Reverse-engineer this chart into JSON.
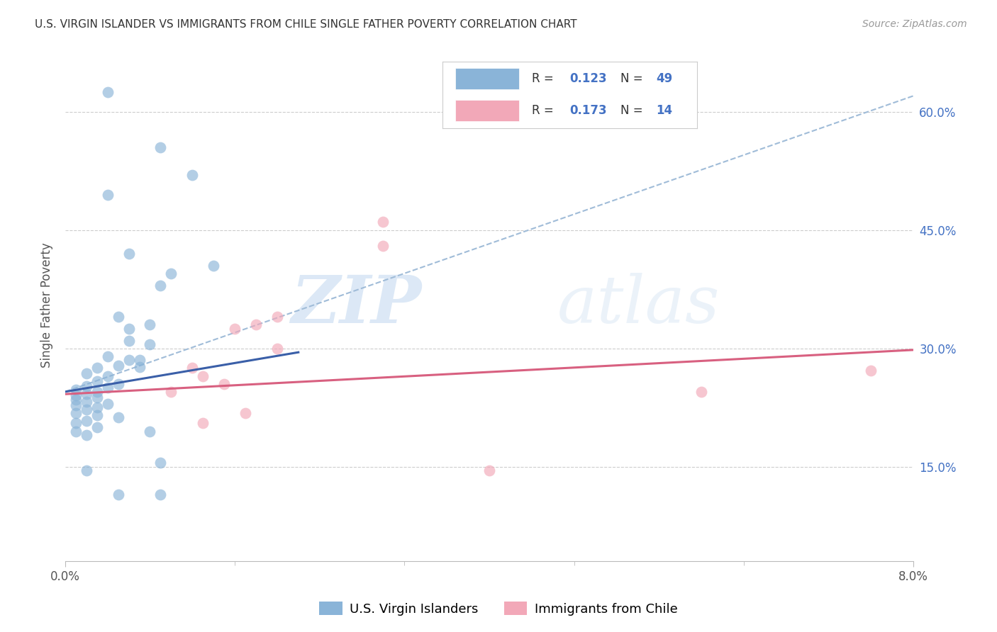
{
  "title": "U.S. VIRGIN ISLANDER VS IMMIGRANTS FROM CHILE SINGLE FATHER POVERTY CORRELATION CHART",
  "source": "Source: ZipAtlas.com",
  "ylabel": "Single Father Poverty",
  "ytick_labels": [
    "15.0%",
    "30.0%",
    "45.0%",
    "60.0%"
  ],
  "ytick_values": [
    0.15,
    0.3,
    0.45,
    0.6
  ],
  "xlim": [
    0.0,
    0.08
  ],
  "ylim": [
    0.03,
    0.68
  ],
  "legend_label1": "U.S. Virgin Islanders",
  "legend_label2": "Immigrants from Chile",
  "watermark_zip": "ZIP",
  "watermark_atlas": "atlas",
  "blue_color": "#8ab4d8",
  "pink_color": "#f2a8b8",
  "blue_line_color": "#3a5fa8",
  "pink_line_color": "#d86080",
  "dashed_line_color": "#a0bcd8",
  "blue_line": [
    [
      0.0,
      0.245
    ],
    [
      0.022,
      0.295
    ]
  ],
  "blue_dash_line": [
    [
      0.0,
      0.245
    ],
    [
      0.08,
      0.62
    ]
  ],
  "pink_line": [
    [
      0.0,
      0.242
    ],
    [
      0.08,
      0.298
    ]
  ],
  "blue_points": [
    [
      0.004,
      0.625
    ],
    [
      0.004,
      0.495
    ],
    [
      0.009,
      0.555
    ],
    [
      0.009,
      0.38
    ],
    [
      0.006,
      0.42
    ],
    [
      0.012,
      0.52
    ],
    [
      0.005,
      0.34
    ],
    [
      0.01,
      0.395
    ],
    [
      0.014,
      0.405
    ],
    [
      0.006,
      0.325
    ],
    [
      0.008,
      0.33
    ],
    [
      0.006,
      0.31
    ],
    [
      0.008,
      0.305
    ],
    [
      0.004,
      0.29
    ],
    [
      0.006,
      0.285
    ],
    [
      0.007,
      0.285
    ],
    [
      0.003,
      0.275
    ],
    [
      0.005,
      0.278
    ],
    [
      0.007,
      0.276
    ],
    [
      0.002,
      0.268
    ],
    [
      0.004,
      0.265
    ],
    [
      0.003,
      0.258
    ],
    [
      0.005,
      0.255
    ],
    [
      0.002,
      0.252
    ],
    [
      0.004,
      0.25
    ],
    [
      0.001,
      0.248
    ],
    [
      0.003,
      0.245
    ],
    [
      0.002,
      0.242
    ],
    [
      0.001,
      0.24
    ],
    [
      0.003,
      0.238
    ],
    [
      0.001,
      0.235
    ],
    [
      0.002,
      0.232
    ],
    [
      0.004,
      0.23
    ],
    [
      0.001,
      0.228
    ],
    [
      0.003,
      0.225
    ],
    [
      0.002,
      0.222
    ],
    [
      0.001,
      0.218
    ],
    [
      0.003,
      0.215
    ],
    [
      0.005,
      0.213
    ],
    [
      0.002,
      0.208
    ],
    [
      0.001,
      0.205
    ],
    [
      0.003,
      0.2
    ],
    [
      0.001,
      0.195
    ],
    [
      0.002,
      0.19
    ],
    [
      0.008,
      0.195
    ],
    [
      0.002,
      0.145
    ],
    [
      0.009,
      0.155
    ],
    [
      0.005,
      0.115
    ],
    [
      0.009,
      0.115
    ]
  ],
  "pink_points": [
    [
      0.03,
      0.46
    ],
    [
      0.03,
      0.43
    ],
    [
      0.02,
      0.34
    ],
    [
      0.018,
      0.33
    ],
    [
      0.016,
      0.325
    ],
    [
      0.02,
      0.3
    ],
    [
      0.012,
      0.275
    ],
    [
      0.013,
      0.265
    ],
    [
      0.015,
      0.255
    ],
    [
      0.01,
      0.245
    ],
    [
      0.017,
      0.218
    ],
    [
      0.013,
      0.205
    ],
    [
      0.04,
      0.145
    ],
    [
      0.06,
      0.245
    ],
    [
      0.076,
      0.272
    ]
  ]
}
